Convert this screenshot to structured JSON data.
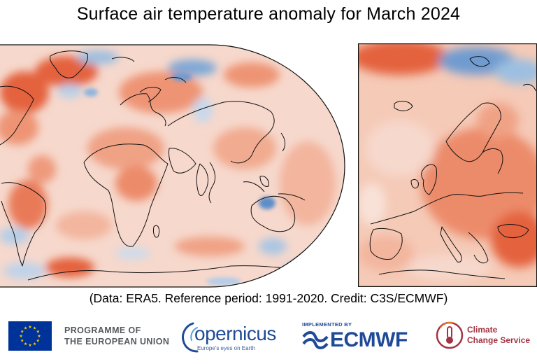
{
  "title": "Surface air temperature anomaly for March 2024",
  "credit": "(Data: ERA5.  Reference period: 1991-2020.  Credit: C3S/ECMWF)",
  "maps": {
    "global": {
      "projection": "Robinson",
      "region": "World"
    },
    "inset": {
      "region": "Europe"
    }
  },
  "colors": {
    "warm": "#e4623e",
    "cool": "#3f78b8",
    "neutral": "#f3f3f3"
  },
  "logos": {
    "eu": {
      "line1": "PROGRAMME OF",
      "line2": "THE EUROPEAN UNION",
      "flag_color": "#003399",
      "star_color": "#ffcc00"
    },
    "copernicus": {
      "name": "opernicus",
      "tagline": "Europe's eyes on Earth",
      "color": "#1f4a96"
    },
    "ecmwf": {
      "implemented_by": "IMPLEMENTED BY",
      "name": "ECMWF",
      "color": "#1f4a96"
    },
    "c3s": {
      "line1": "Climate",
      "line2": "Change Service",
      "color": "#a33343"
    }
  }
}
